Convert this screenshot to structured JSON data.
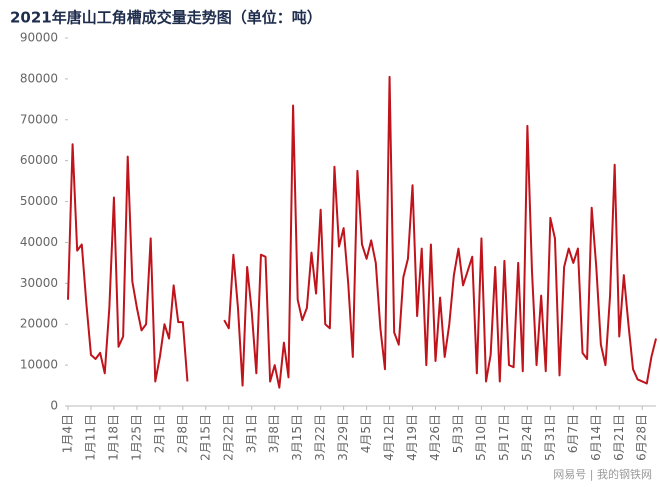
{
  "chart_data": {
    "type": "line",
    "title": "2021年唐山工角槽成交量走势图（单位：吨）",
    "watermark": "网易号 | 我的钢铁网",
    "color": "#c0141c",
    "categories": [
      "1月4日",
      null,
      null,
      null,
      null,
      "1月11日",
      null,
      null,
      null,
      null,
      "1月18日",
      null,
      null,
      null,
      null,
      "1月25日",
      null,
      null,
      null,
      null,
      "2月1日",
      null,
      null,
      null,
      null,
      "2月8日",
      null,
      null,
      null,
      null,
      "2月15日",
      null,
      null,
      null,
      null,
      "2月22日",
      null,
      null,
      null,
      null,
      "3月1日",
      null,
      null,
      null,
      null,
      "3月8日",
      null,
      null,
      null,
      null,
      "3月15日",
      null,
      null,
      null,
      null,
      "3月22日",
      null,
      null,
      null,
      null,
      "3月29日",
      null,
      null,
      null,
      null,
      "4月5日",
      null,
      null,
      null,
      null,
      "4月12日",
      null,
      null,
      null,
      null,
      "4月19日",
      null,
      null,
      null,
      null,
      "4月26日",
      null,
      null,
      null,
      null,
      "5月3日",
      null,
      null,
      null,
      null,
      "5月10日",
      null,
      null,
      null,
      null,
      "5月17日",
      null,
      null,
      null,
      null,
      "5月24日",
      null,
      null,
      null,
      null,
      "5月31日",
      null,
      null,
      null,
      null,
      "6月7日",
      null,
      null,
      null,
      null,
      "6月14日",
      null,
      null,
      null,
      null,
      "6月21日",
      null,
      null,
      null,
      null,
      "6月28日",
      null,
      null,
      null
    ],
    "values": [
      26000,
      64000,
      38000,
      39500,
      25000,
      12500,
      11500,
      13000,
      8000,
      24000,
      51000,
      14500,
      17000,
      61000,
      30500,
      24000,
      18500,
      20000,
      41000,
      6000,
      12000,
      20000,
      16500,
      29500,
      20500,
      20500,
      6000,
      null,
      null,
      null,
      null,
      null,
      null,
      null,
      21000,
      19000,
      37000,
      24000,
      5000,
      34000,
      23000,
      8000,
      37000,
      36500,
      6000,
      10000,
      4500,
      15500,
      7000,
      73500,
      26000,
      21000,
      24000,
      37500,
      27500,
      48000,
      20000,
      19000,
      58500,
      39000,
      43500,
      30000,
      12000,
      57500,
      39500,
      36000,
      40500,
      35000,
      19000,
      9000,
      80500,
      18000,
      15000,
      31500,
      36000,
      54000,
      22000,
      38500,
      10000,
      39500,
      11000,
      26500,
      12000,
      20000,
      32000,
      38500,
      29500,
      33000,
      36500,
      8000,
      41000,
      6000,
      12500,
      34000,
      6000,
      35500,
      10000,
      9500,
      35000,
      8500,
      68500,
      33000,
      10000,
      27000,
      8500,
      46000,
      41000,
      7500,
      34000,
      38500,
      35000,
      38500,
      13000,
      11500,
      48500,
      34000,
      15000,
      10000,
      27000,
      59000,
      17000,
      32000,
      20000,
      9000,
      6500,
      6000,
      5500,
      12000,
      16500
    ],
    "ylim": [
      0,
      90000
    ],
    "yticks": [
      0,
      10000,
      20000,
      30000,
      40000,
      50000,
      60000,
      70000,
      80000,
      90000
    ]
  }
}
